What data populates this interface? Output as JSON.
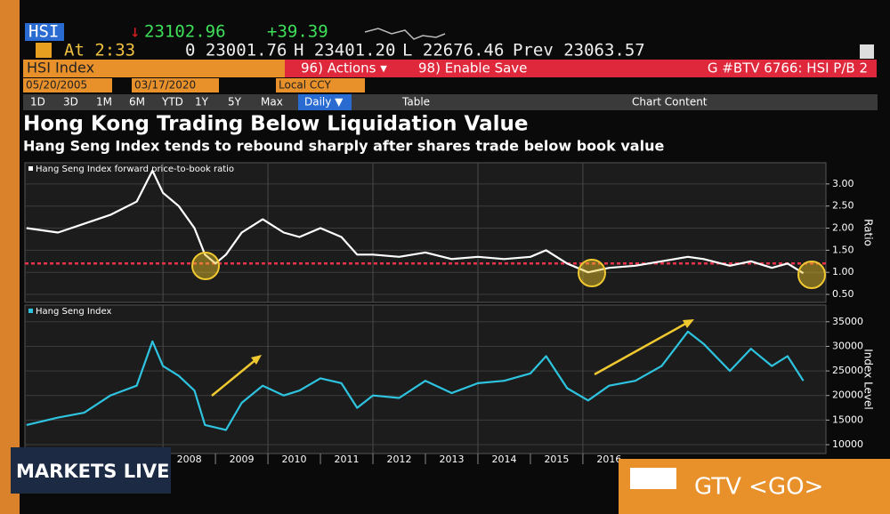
{
  "terminal": {
    "ticker": "HSI",
    "last": "23102.96",
    "change": "+39.39",
    "time": "At 2:33",
    "open": "0 23001.76",
    "high": "H 23401.20",
    "low": "L 22676.46",
    "prev": "Prev 23063.57",
    "security": "HSI Index",
    "actions": "96) Actions ▾",
    "save": "98) Enable Save",
    "page": "G #BTV 6766: HSI P/B 2",
    "start_date": "05/20/2005",
    "end_date": "03/17/2020",
    "currency": "Local CCY",
    "periods": [
      "1D",
      "3D",
      "1M",
      "6M",
      "YTD",
      "1Y",
      "5Y",
      "Max"
    ],
    "frequency": "Daily ▼",
    "table": "Table",
    "chart_content": "Chart Content",
    "title": "Hong Kong Trading Below Liquidation Value",
    "subtitle": "Hang Seng Index tends to rebound sharply after shares trade below book value"
  },
  "overlay": {
    "show": "MARKETS LIVE",
    "function": "GTV <GO>"
  },
  "chart_data": [
    {
      "type": "line",
      "y_label": "Ratio",
      "xlim": [
        2005.37,
        2020.63
      ],
      "ylim": [
        0.32,
        3.48
      ],
      "yticks": [
        {
          "value": 0.5,
          "label": "0.50"
        },
        {
          "value": 1,
          "label": "1.00"
        },
        {
          "value": 1.5,
          "label": "1.50"
        },
        {
          "value": 2,
          "label": "2.00"
        },
        {
          "value": 2.5,
          "label": "2.50"
        },
        {
          "value": 3,
          "label": "3.00"
        }
      ],
      "reference_line": {
        "value": 1.2,
        "color": "#e8344a"
      },
      "x": [
        2005.4,
        2006,
        2006.5,
        2007,
        2007.5,
        2007.8,
        2008,
        2008.3,
        2008.6,
        2008.8,
        2009,
        2009.2,
        2009.5,
        2009.9,
        2010.3,
        2010.6,
        2011,
        2011.4,
        2011.7,
        2012,
        2012.5,
        2013,
        2013.5,
        2014,
        2014.5,
        2015,
        2015.3,
        2015.7,
        2016.1,
        2016.5,
        2017,
        2017.5,
        2018,
        2018.3,
        2018.8,
        2019.2,
        2019.6,
        2019.9,
        2020.2
      ],
      "series": [
        {
          "name": "Hang Seng Index forward price-to-book ratio",
          "color": "#ffffff",
          "values": [
            2.0,
            1.9,
            2.1,
            2.3,
            2.6,
            3.3,
            2.8,
            2.5,
            2.0,
            1.4,
            1.2,
            1.4,
            1.9,
            2.2,
            1.9,
            1.8,
            2.0,
            1.8,
            1.4,
            1.4,
            1.35,
            1.45,
            1.3,
            1.35,
            1.3,
            1.35,
            1.5,
            1.2,
            1.0,
            1.1,
            1.15,
            1.25,
            1.35,
            1.3,
            1.15,
            1.25,
            1.1,
            1.2,
            0.98
          ]
        }
      ]
    },
    {
      "type": "line",
      "y_label": "Index Level",
      "xlim": [
        2005.37,
        2020.63
      ],
      "ylim": [
        8200,
        38400
      ],
      "yticks": [
        10000,
        15000,
        20000,
        25000,
        30000,
        35000
      ],
      "xticks": [
        2008,
        2009,
        2010,
        2011,
        2012,
        2013,
        2014,
        2015,
        2016
      ],
      "x": [
        2005.4,
        2006,
        2006.5,
        2007,
        2007.5,
        2007.8,
        2008,
        2008.3,
        2008.6,
        2008.8,
        2009,
        2009.2,
        2009.5,
        2009.9,
        2010.3,
        2010.6,
        2011,
        2011.4,
        2011.7,
        2012,
        2012.5,
        2013,
        2013.5,
        2014,
        2014.5,
        2015,
        2015.3,
        2015.7,
        2016.1,
        2016.5,
        2017,
        2017.5,
        2018,
        2018.3,
        2018.8,
        2019.2,
        2019.6,
        2019.9,
        2020.2
      ],
      "series": [
        {
          "name": "Hang Seng Index",
          "color": "#2ec4e0",
          "values": [
            14000,
            15500,
            16500,
            20000,
            22000,
            31000,
            26000,
            24000,
            21000,
            14000,
            13500,
            13000,
            18500,
            22000,
            20000,
            21000,
            23500,
            22500,
            17500,
            20000,
            19500,
            23000,
            20500,
            22500,
            23000,
            24500,
            28000,
            21500,
            19000,
            22000,
            23000,
            26000,
            33000,
            30500,
            25000,
            29500,
            26000,
            28000,
            23000
          ]
        }
      ]
    }
  ]
}
